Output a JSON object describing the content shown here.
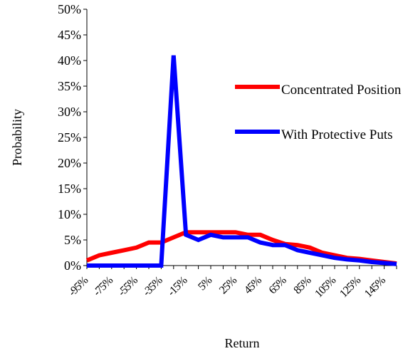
{
  "chart_data": {
    "type": "line",
    "y_label": "Probability",
    "x_label": "Return",
    "categories": [
      "-95%",
      null,
      "-75%",
      null,
      "-55%",
      null,
      "-35%",
      null,
      "-15%",
      null,
      "5%",
      null,
      "25%",
      null,
      "45%",
      null,
      "65%",
      null,
      "85%",
      null,
      "105%",
      null,
      "125%",
      null,
      "145%",
      null
    ],
    "series": [
      {
        "name": "Concentrated Position",
        "color": "#ff0000",
        "values": [
          1,
          2,
          2.5,
          3,
          3.5,
          4.5,
          4.5,
          5.5,
          6.5,
          6.5,
          6.5,
          6.5,
          6.5,
          6,
          6,
          5,
          4.2,
          4,
          3.5,
          2.5,
          2,
          1.5,
          1.3,
          1,
          0.7,
          0.4
        ]
      },
      {
        "name": "With Protective Puts",
        "color": "#0000ff",
        "values": [
          0,
          0,
          0,
          0,
          0,
          0,
          0,
          41,
          6,
          5,
          6,
          5.5,
          5.5,
          5.5,
          4.5,
          4,
          4,
          3,
          2.5,
          2,
          1.5,
          1.2,
          1,
          0.7,
          0.5,
          0.3
        ]
      }
    ],
    "ylim": [
      0,
      50
    ],
    "yticks": [
      {
        "value": 0,
        "label": "0%"
      },
      {
        "value": 5,
        "label": "5%"
      },
      {
        "value": 10,
        "label": "10%"
      },
      {
        "value": 15,
        "label": "15%"
      },
      {
        "value": 20,
        "label": "20%"
      },
      {
        "value": 25,
        "label": "25%"
      },
      {
        "value": 30,
        "label": "30%"
      },
      {
        "value": 35,
        "label": "35%"
      },
      {
        "value": 40,
        "label": "40%"
      },
      {
        "value": 45,
        "label": "45%"
      },
      {
        "value": 50,
        "label": "50%"
      }
    ],
    "legend": "right"
  }
}
